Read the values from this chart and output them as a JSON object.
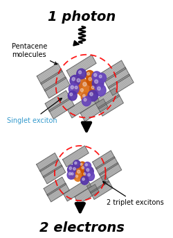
{
  "title_top": "1 photon",
  "title_bottom": "2 electrons",
  "label_pentacene": "Pentacene\nmolecules",
  "label_singlet": "Singlet exciton",
  "label_triplet": "2 triplet excitons",
  "bg_color": "#ffffff",
  "title_fontsize": 14,
  "label_fontsize": 7,
  "fig_width": 2.5,
  "fig_height": 3.43,
  "dpi": 100
}
